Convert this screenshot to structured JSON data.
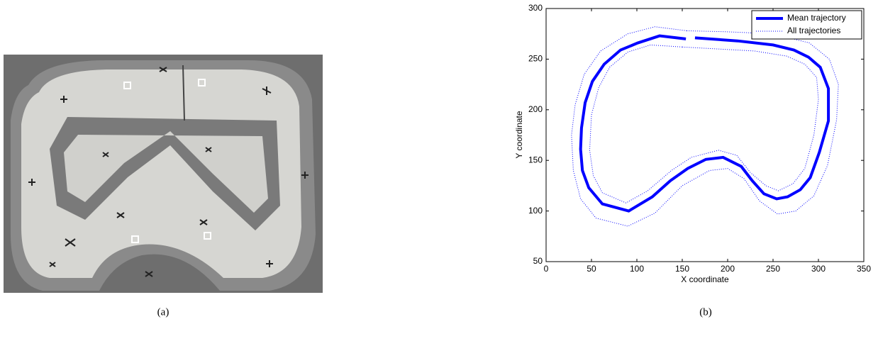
{
  "captions": [
    "(a)",
    "(b)"
  ],
  "chart_data": {
    "type": "line",
    "xlabel": "X coordinate",
    "ylabel": "Y coordinate",
    "xlim": [
      0,
      350
    ],
    "ylim": [
      50,
      300
    ],
    "xticks": [
      0,
      50,
      100,
      150,
      200,
      250,
      300,
      350
    ],
    "yticks": [
      50,
      100,
      150,
      200,
      250,
      300
    ],
    "legend": "upper right",
    "series": [
      {
        "name": "Mean trajectory",
        "color": "#0000ff",
        "style": "solid",
        "lines": [
          {
            "x": [
              154,
              125,
              101,
              82,
              64,
              51,
              43,
              39,
              38,
              40,
              47,
              62,
              91,
              117,
              137,
              156,
              176,
              195,
              215,
              227,
              240,
              254,
              266,
              280,
              291,
              301,
              311,
              311,
              302,
              289,
              273,
              250,
              211,
              164
            ],
            "y": [
              270,
              273,
              266,
              259,
              245,
              228,
              207,
              182,
              161,
              140,
              123,
              107,
              100,
              114,
              130,
              142,
              151,
              153,
              144,
              130,
              117,
              112,
              114,
              121,
              133,
              158,
              189,
              221,
              242,
              252,
              259,
              264,
              268,
              271
            ]
          }
        ]
      },
      {
        "name": "All trajectories",
        "color": "#0000ff",
        "style": "dotted",
        "lines": [
          {
            "x": [
              155,
              120,
              90,
              60,
              42,
              32,
              28,
              30,
              38,
              55,
              90,
              120,
              150,
              180,
              200,
              218,
              235,
              255,
              275,
              295,
              310,
              320,
              322,
              312,
              290,
              250,
              200,
              155
            ],
            "y": [
              278,
              282,
              275,
              258,
              235,
              205,
              175,
              140,
              112,
              93,
              85,
              98,
              125,
              140,
              142,
              132,
              110,
              97,
              100,
              115,
              145,
              190,
              225,
              250,
              266,
              275,
              277,
              278
            ]
          },
          {
            "x": [
              150,
              115,
              90,
              70,
              58,
              50,
              48,
              52,
              62,
              88,
              112,
              138,
              160,
              190,
              210,
              225,
              242,
              256,
              272,
              285,
              295,
              300,
              298,
              285,
              265,
              230,
              190,
              150
            ],
            "y": [
              262,
              264,
              257,
              242,
              222,
              195,
              160,
              135,
              118,
              108,
              120,
              140,
              153,
              160,
              155,
              138,
              125,
              120,
              127,
              142,
              175,
              210,
              232,
              245,
              253,
              258,
              260,
              262
            ]
          }
        ]
      }
    ]
  }
}
